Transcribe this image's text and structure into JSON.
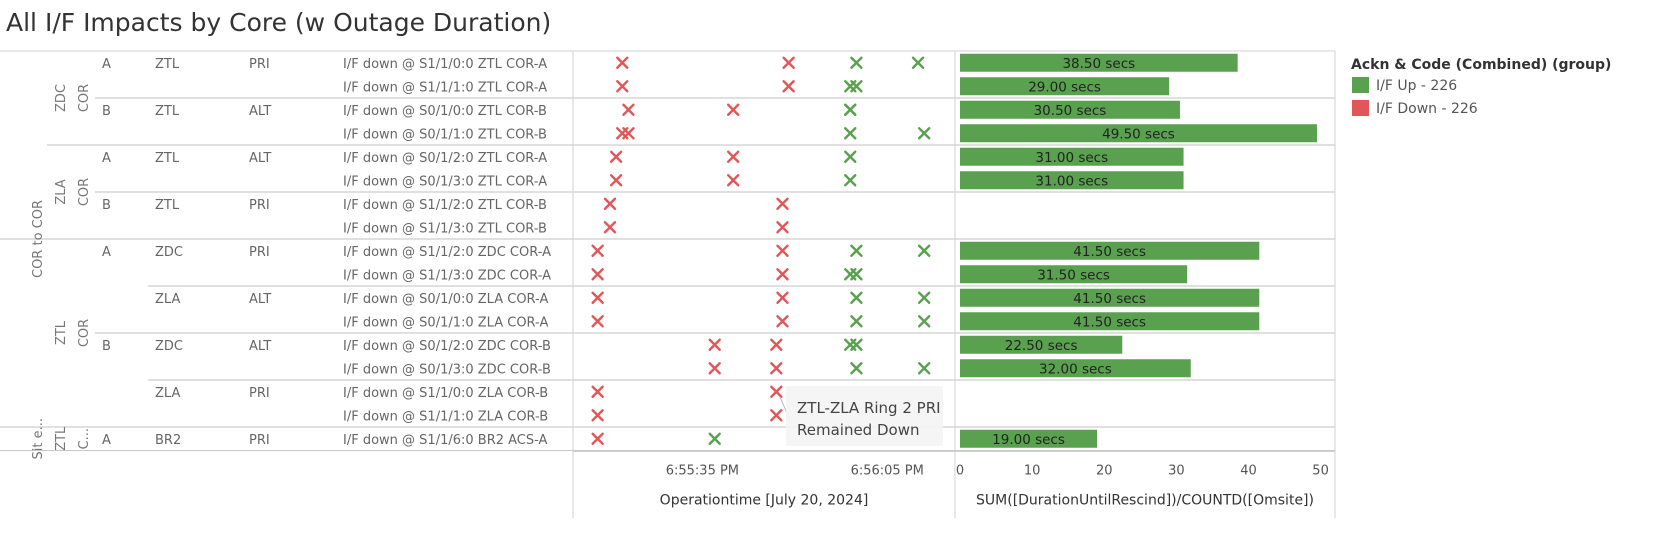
{
  "title": "All I/F Impacts by Core (w Outage Duration)",
  "colors": {
    "up": "#59a14f",
    "down": "#e15759"
  },
  "legend": {
    "title": "Ackn & Code (Combined) (group)",
    "items": [
      {
        "label": "I/F Up - 226",
        "color": "#59a14f"
      },
      {
        "label": "I/F Down - 226",
        "color": "#e15759"
      }
    ]
  },
  "rows": [
    {
      "ring": "A",
      "site": "ZTL",
      "role": "PRI",
      "iface": "I/F down @ S1/1/0:0 ZTL COR-A"
    },
    {
      "ring": "",
      "site": "",
      "role": "",
      "iface": "I/F down @ S1/1/1:0 ZTL COR-A"
    },
    {
      "ring": "B",
      "site": "ZTL",
      "role": "ALT",
      "iface": "I/F down @ S0/1/0:0 ZTL COR-B"
    },
    {
      "ring": "",
      "site": "",
      "role": "",
      "iface": "I/F down @ S0/1/1:0 ZTL COR-B"
    },
    {
      "ring": "A",
      "site": "ZTL",
      "role": "ALT",
      "iface": "I/F down @ S0/1/2:0 ZTL COR-A"
    },
    {
      "ring": "",
      "site": "",
      "role": "",
      "iface": "I/F down @ S0/1/3:0 ZTL COR-A"
    },
    {
      "ring": "B",
      "site": "ZTL",
      "role": "PRI",
      "iface": "I/F down @ S1/1/2:0 ZTL COR-B"
    },
    {
      "ring": "",
      "site": "",
      "role": "",
      "iface": "I/F down @ S1/1/3:0 ZTL COR-B"
    },
    {
      "ring": "A",
      "site": "ZDC",
      "role": "PRI",
      "iface": "I/F down @ S1/1/2:0 ZDC COR-A"
    },
    {
      "ring": "",
      "site": "",
      "role": "",
      "iface": "I/F down @ S1/1/3:0 ZDC COR-A"
    },
    {
      "ring": "",
      "site": "ZLA",
      "role": "ALT",
      "iface": "I/F down @ S0/1/0:0 ZLA COR-A"
    },
    {
      "ring": "",
      "site": "",
      "role": "",
      "iface": "I/F down @ S0/1/1:0 ZLA COR-A"
    },
    {
      "ring": "B",
      "site": "ZDC",
      "role": "ALT",
      "iface": "I/F down @ S0/1/2:0 ZDC COR-B"
    },
    {
      "ring": "",
      "site": "",
      "role": "",
      "iface": "I/F down @ S0/1/3:0 ZDC COR-B"
    },
    {
      "ring": "",
      "site": "ZLA",
      "role": "PRI",
      "iface": "I/F down @ S1/1/0:0 ZLA COR-B"
    },
    {
      "ring": "",
      "site": "",
      "role": "",
      "iface": "I/F down @ S1/1/1:0 ZLA COR-B"
    },
    {
      "ring": "A",
      "site": "BR2",
      "role": "PRI",
      "iface": "I/F down @ S1/1/6:0 BR2 ACS-A"
    }
  ],
  "groups": [
    {
      "level": "outer",
      "label": "COR to COR",
      "start": 0,
      "end": 15
    },
    {
      "level": "outer",
      "label": "Sit e...",
      "start": 16,
      "end": 16
    },
    {
      "level": "core",
      "label": "ZDC COR",
      "start": 0,
      "end": 3
    },
    {
      "level": "core",
      "label": "ZLA COR",
      "start": 4,
      "end": 7
    },
    {
      "level": "core",
      "label": "ZTL COR",
      "start": 8,
      "end": 15
    },
    {
      "level": "core",
      "label": "ZTL C...",
      "start": 16,
      "end": 16
    }
  ],
  "annotation": {
    "line1": "ZTL-ZLA Ring 2 PRI",
    "line2": "Remained Down"
  },
  "chart_data": [
    {
      "type": "scatter",
      "xlabel": "Operationtime [July 20, 2024]",
      "x_ticks": [
        "6:55:35 PM",
        "6:56:05 PM"
      ],
      "xlim": [
        "6:55:14 PM",
        "6:56:16 PM"
      ],
      "marker": "x",
      "series": [
        {
          "name": "I/F Down - 226",
          "points": [
            {
              "row": 0,
              "t": "6:55:22 PM"
            },
            {
              "row": 0,
              "t": "6:55:49 PM"
            },
            {
              "row": 1,
              "t": "6:55:22 PM"
            },
            {
              "row": 1,
              "t": "6:55:49 PM"
            },
            {
              "row": 2,
              "t": "6:55:23 PM"
            },
            {
              "row": 2,
              "t": "6:55:40 PM"
            },
            {
              "row": 3,
              "t": "6:55:22 PM"
            },
            {
              "row": 3,
              "t": "6:55:23 PM"
            },
            {
              "row": 4,
              "t": "6:55:21 PM"
            },
            {
              "row": 4,
              "t": "6:55:40 PM"
            },
            {
              "row": 5,
              "t": "6:55:21 PM"
            },
            {
              "row": 5,
              "t": "6:55:40 PM"
            },
            {
              "row": 6,
              "t": "6:55:20 PM"
            },
            {
              "row": 6,
              "t": "6:55:48 PM"
            },
            {
              "row": 7,
              "t": "6:55:20 PM"
            },
            {
              "row": 7,
              "t": "6:55:48 PM"
            },
            {
              "row": 8,
              "t": "6:55:18 PM"
            },
            {
              "row": 8,
              "t": "6:55:48 PM"
            },
            {
              "row": 9,
              "t": "6:55:18 PM"
            },
            {
              "row": 9,
              "t": "6:55:48 PM"
            },
            {
              "row": 10,
              "t": "6:55:18 PM"
            },
            {
              "row": 10,
              "t": "6:55:48 PM"
            },
            {
              "row": 11,
              "t": "6:55:18 PM"
            },
            {
              "row": 11,
              "t": "6:55:48 PM"
            },
            {
              "row": 12,
              "t": "6:55:37 PM"
            },
            {
              "row": 12,
              "t": "6:55:47 PM"
            },
            {
              "row": 13,
              "t": "6:55:37 PM"
            },
            {
              "row": 13,
              "t": "6:55:47 PM"
            },
            {
              "row": 14,
              "t": "6:55:18 PM"
            },
            {
              "row": 14,
              "t": "6:55:47 PM"
            },
            {
              "row": 15,
              "t": "6:55:18 PM"
            },
            {
              "row": 15,
              "t": "6:55:47 PM"
            },
            {
              "row": 16,
              "t": "6:55:18 PM"
            }
          ]
        },
        {
          "name": "I/F Up - 226",
          "points": [
            {
              "row": 0,
              "t": "6:56:00 PM"
            },
            {
              "row": 0,
              "t": "6:56:10 PM"
            },
            {
              "row": 1,
              "t": "6:55:59 PM"
            },
            {
              "row": 1,
              "t": "6:56:00 PM"
            },
            {
              "row": 2,
              "t": "6:55:59 PM"
            },
            {
              "row": 2,
              "t": "6:55:59 PM"
            },
            {
              "row": 3,
              "t": "6:55:59 PM"
            },
            {
              "row": 3,
              "t": "6:56:11 PM"
            },
            {
              "row": 4,
              "t": "6:55:59 PM"
            },
            {
              "row": 5,
              "t": "6:55:59 PM"
            },
            {
              "row": 8,
              "t": "6:56:00 PM"
            },
            {
              "row": 8,
              "t": "6:56:11 PM"
            },
            {
              "row": 9,
              "t": "6:55:59 PM"
            },
            {
              "row": 9,
              "t": "6:56:00 PM"
            },
            {
              "row": 10,
              "t": "6:56:00 PM"
            },
            {
              "row": 10,
              "t": "6:56:11 PM"
            },
            {
              "row": 11,
              "t": "6:56:00 PM"
            },
            {
              "row": 11,
              "t": "6:56:11 PM"
            },
            {
              "row": 12,
              "t": "6:55:59 PM"
            },
            {
              "row": 12,
              "t": "6:56:00 PM"
            },
            {
              "row": 13,
              "t": "6:56:00 PM"
            },
            {
              "row": 13,
              "t": "6:56:11 PM"
            },
            {
              "row": 16,
              "t": "6:55:37 PM"
            }
          ]
        }
      ]
    },
    {
      "type": "bar",
      "orientation": "horizontal",
      "xlabel": "SUM([DurationUntilRescind])/COUNTD([Omsite])",
      "xlim": [
        0,
        52
      ],
      "x_ticks": [
        0,
        10,
        20,
        30,
        40,
        50
      ],
      "series_name": "I/F Up - 226",
      "values": [
        38.5,
        29.0,
        30.5,
        49.5,
        31.0,
        31.0,
        null,
        null,
        41.5,
        31.5,
        41.5,
        41.5,
        22.5,
        32.0,
        null,
        null,
        19.0
      ],
      "labels": [
        "38.50 secs",
        "29.00 secs",
        "30.50 secs",
        "49.50 secs",
        "31.00 secs",
        "31.00 secs",
        "",
        "",
        "41.50 secs",
        "31.50 secs",
        "41.50 secs",
        "41.50 secs",
        "22.50 secs",
        "32.00 secs",
        "",
        "",
        "19.00 secs"
      ]
    }
  ]
}
